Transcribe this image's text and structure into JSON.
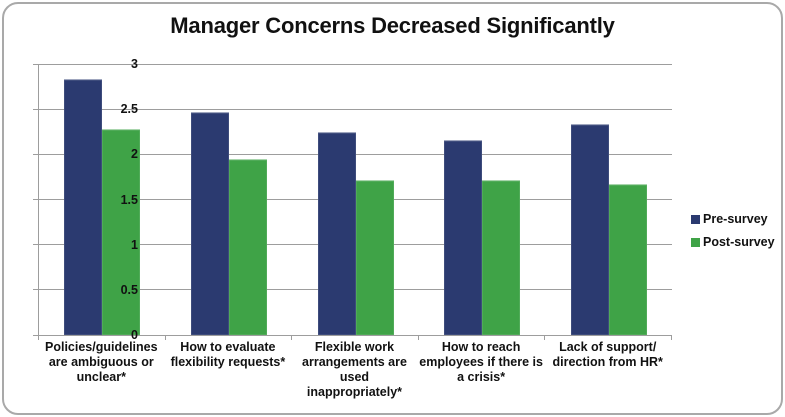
{
  "chart_data": {
    "type": "bar",
    "title": "Manager Concerns Decreased Significantly",
    "categories": [
      "Policies/guidelines\nare ambiguous or\nunclear*",
      "How to evaluate\nflexibility requests*",
      "Flexible work\narrangements are\nused\ninappropriately*",
      "How to reach\nemployees if there is\na crisis*",
      "Lack of support/\ndirection from HR*"
    ],
    "series": [
      {
        "name": "Pre-survey",
        "color": "#2B3A70",
        "values": [
          2.82,
          2.46,
          2.24,
          2.15,
          2.33
        ]
      },
      {
        "name": "Post-survey",
        "color": "#3FA347",
        "values": [
          2.27,
          1.94,
          1.71,
          1.71,
          1.66
        ]
      }
    ],
    "ylim": [
      0,
      3
    ],
    "yticks": [
      0,
      0.5,
      1,
      1.5,
      2,
      2.5,
      3
    ],
    "grid": "horizontal",
    "legend_position": "right"
  },
  "colors": {
    "gridline": "#9d9d9d",
    "axis": "#9d9d9d",
    "frame_border": "#a9a9a9",
    "text": "#111111"
  }
}
